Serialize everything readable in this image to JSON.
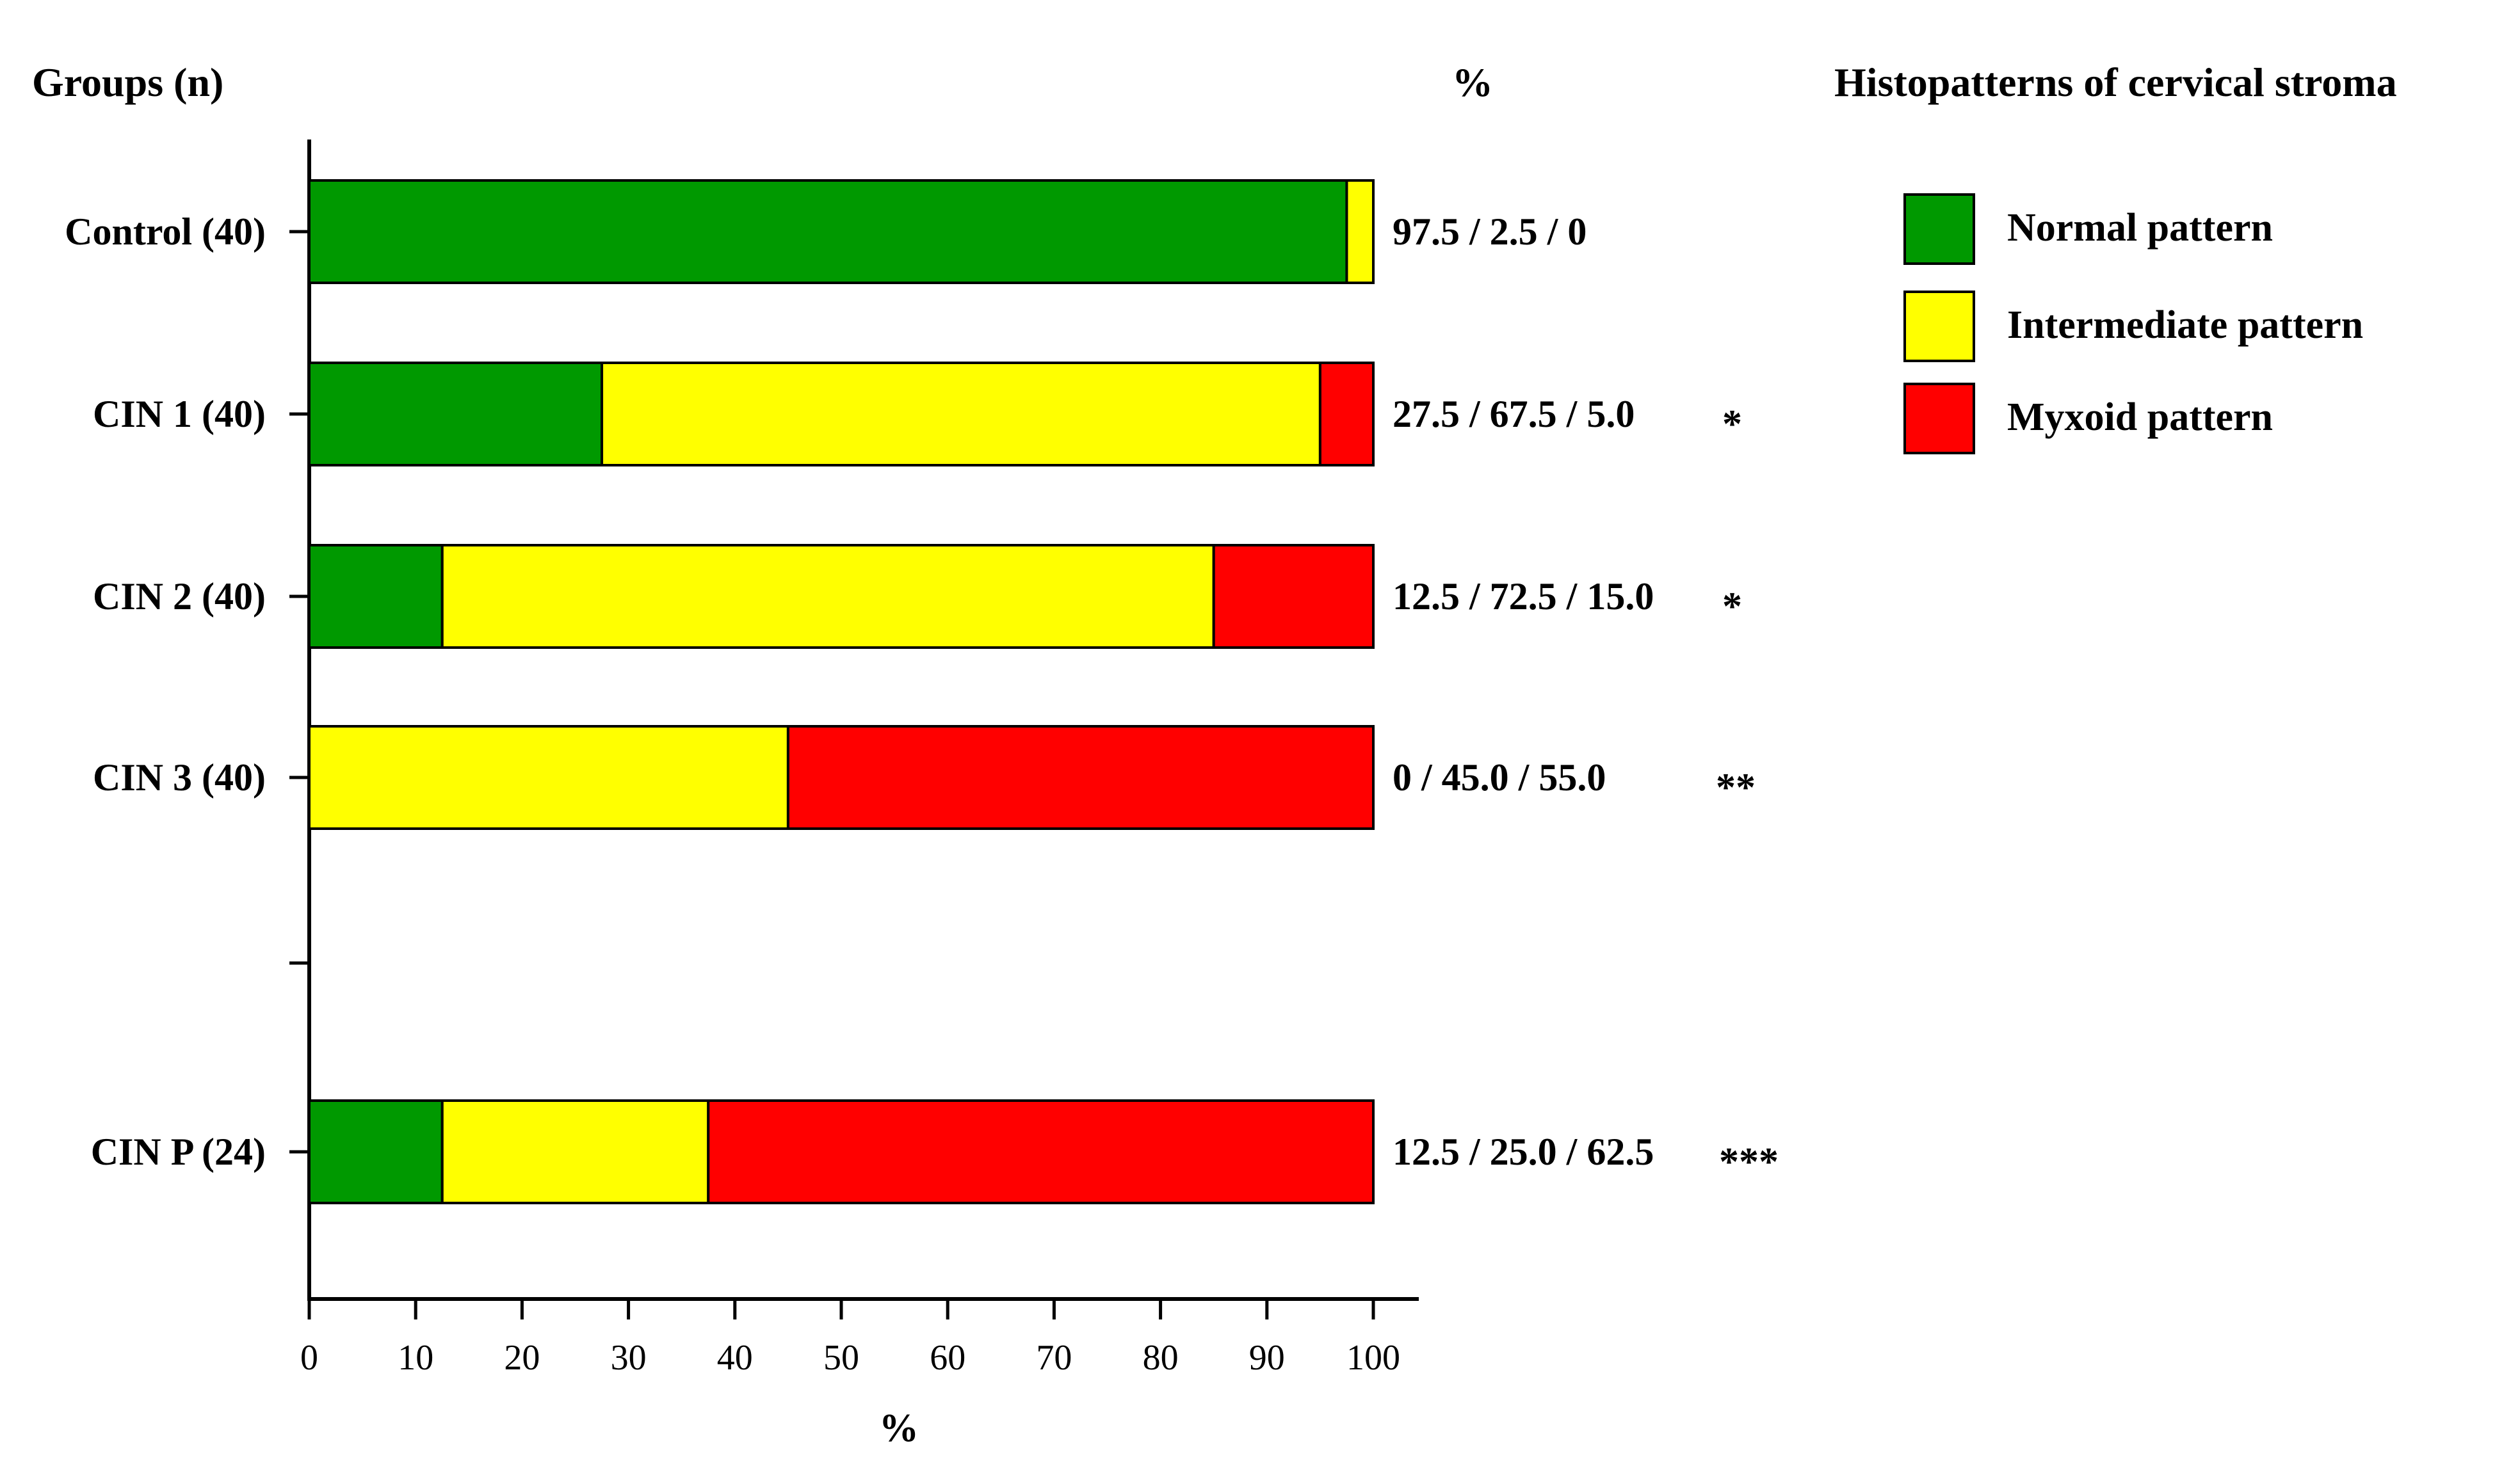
{
  "chart_data": {
    "type": "bar",
    "orientation": "horizontal",
    "stacked": true,
    "category_header": "Groups (n)",
    "annotation_header": "%",
    "xlabel": "%",
    "xlim": [
      0,
      100
    ],
    "xticks": [
      0,
      10,
      20,
      30,
      40,
      50,
      60,
      70,
      80,
      90,
      100
    ],
    "grid": false,
    "legend": {
      "title": "Histopatterns of cervical stroma",
      "position": "top-right"
    },
    "categories": [
      "Control (40)",
      "CIN 1 (40)",
      "CIN 2 (40)",
      "CIN 3 (40)",
      "CIN P (24)"
    ],
    "series": [
      {
        "name": "Normal pattern",
        "color": "#009900",
        "values": [
          97.5,
          27.5,
          12.5,
          0,
          12.5
        ]
      },
      {
        "name": "Intermediate pattern",
        "color": "#ffff00",
        "values": [
          2.5,
          67.5,
          72.5,
          45.0,
          25.0
        ]
      },
      {
        "name": "Myxoid pattern",
        "color": "#ff0000",
        "values": [
          0,
          5.0,
          15.0,
          55.0,
          62.5
        ]
      }
    ],
    "annotations": [
      "97.5 / 2.5 / 0",
      "27.5 / 67.5 / 5.0",
      "12.5 / 72.5 / 15.0",
      "0 / 45.0 / 55.0",
      "12.5 / 25.0 / 62.5"
    ],
    "significance": [
      "",
      "*",
      "*",
      "**",
      "***"
    ]
  }
}
